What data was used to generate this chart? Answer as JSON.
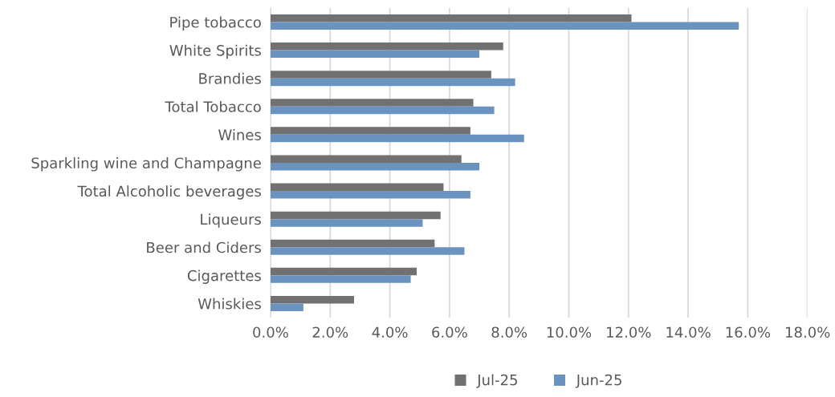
{
  "chart_data": {
    "type": "bar",
    "orientation": "horizontal",
    "categories": [
      "Pipe tobacco",
      "White Spirits",
      "Brandies",
      "Total Tobacco",
      "Wines",
      "Sparkling wine and Champagne",
      "Total Alcoholic beverages",
      "Liqueurs",
      "Beer and Ciders",
      "Cigarettes",
      "Whiskies"
    ],
    "series": [
      {
        "name": "Jul-25",
        "color": "#717171",
        "values": [
          12.1,
          7.8,
          7.4,
          6.8,
          6.7,
          6.4,
          5.8,
          5.7,
          5.5,
          4.9,
          2.8
        ]
      },
      {
        "name": "Jun-25",
        "color": "#6b93c0",
        "values": [
          15.7,
          7.0,
          8.2,
          7.5,
          8.5,
          7.0,
          6.7,
          5.1,
          6.5,
          4.7,
          1.1
        ]
      }
    ],
    "xlim": [
      0,
      18
    ],
    "xticks": [
      {
        "value": 0,
        "label": "0.0%"
      },
      {
        "value": 2,
        "label": "2.0%"
      },
      {
        "value": 4,
        "label": "4.0%"
      },
      {
        "value": 6,
        "label": "6.0%"
      },
      {
        "value": 8,
        "label": "8.0%"
      },
      {
        "value": 10,
        "label": "10.0%"
      },
      {
        "value": 12,
        "label": "12.0%"
      },
      {
        "value": 14,
        "label": "14.0%"
      },
      {
        "value": 16,
        "label": "16.0%"
      },
      {
        "value": 18,
        "label": "18.0%"
      }
    ],
    "grid": "x",
    "legend": "bottom"
  }
}
